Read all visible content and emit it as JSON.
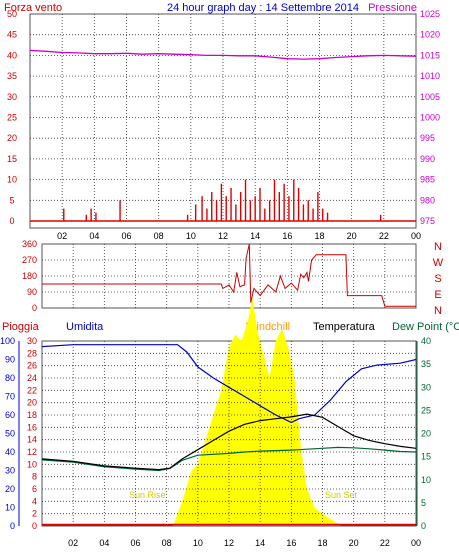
{
  "title": "24 hour graph day : 14 Settembre 2014",
  "colors": {
    "wind": "#dd0000",
    "direction": "#cc0000",
    "pressure": "#cc00cc",
    "humidity": "#0000cc",
    "temperature": "#000000",
    "dewpoint": "#006633",
    "rain": "#dd0000",
    "windchill": "#ff9900",
    "sun": "#ffff00",
    "grid": "#333333",
    "axisblue": "#0000cc",
    "axisred": "#cc0000",
    "axisgreen": "#006633"
  },
  "hour_ticks": [
    "02",
    "04",
    "06",
    "08",
    "10",
    "12",
    "14",
    "16",
    "18",
    "20",
    "22",
    "00"
  ],
  "chart_data": [
    {
      "type": "line",
      "name": "wind-pressure",
      "left_label": "Forza vento",
      "right_label": "Pressione",
      "left_ticks": [
        "50",
        "45",
        "40",
        "35",
        "30",
        "25",
        "20",
        "15",
        "10",
        "5",
        "0"
      ],
      "left_range": [
        0,
        50
      ],
      "right_ticks": [
        "1025",
        "1020",
        "1015",
        "1010",
        "1005",
        "1000",
        "995",
        "990",
        "985",
        "980",
        "975"
      ],
      "right_range": [
        975,
        1025
      ],
      "pressure": [
        [
          0,
          1016.2
        ],
        [
          1,
          1016.0
        ],
        [
          2,
          1015.7
        ],
        [
          3,
          1015.6
        ],
        [
          4,
          1015.4
        ],
        [
          5,
          1015.4
        ],
        [
          6,
          1015.5
        ],
        [
          7,
          1015.3
        ],
        [
          8,
          1015.4
        ],
        [
          9,
          1015.3
        ],
        [
          10,
          1015.2
        ],
        [
          11,
          1015.0
        ],
        [
          12,
          1015.0
        ],
        [
          13,
          1014.9
        ],
        [
          14,
          1014.9
        ],
        [
          15,
          1014.6
        ],
        [
          16,
          1014.2
        ],
        [
          17,
          1014.1
        ],
        [
          18,
          1014.2
        ],
        [
          19,
          1014.5
        ],
        [
          20,
          1014.7
        ],
        [
          21,
          1014.9
        ],
        [
          22,
          1015.0
        ],
        [
          23,
          1014.9
        ],
        [
          24,
          1014.8
        ]
      ],
      "wind_spikes": [
        [
          2.1,
          3
        ],
        [
          3.5,
          1.5
        ],
        [
          3.8,
          3
        ],
        [
          4.1,
          2
        ],
        [
          5.6,
          5
        ],
        [
          9.8,
          1.5
        ],
        [
          10.3,
          4
        ],
        [
          10.7,
          6
        ],
        [
          11.0,
          3
        ],
        [
          11.3,
          7
        ],
        [
          11.6,
          5
        ],
        [
          11.9,
          9
        ],
        [
          12.2,
          6
        ],
        [
          12.5,
          8
        ],
        [
          12.8,
          4
        ],
        [
          13.1,
          7
        ],
        [
          13.4,
          10
        ],
        [
          13.7,
          5
        ],
        [
          14.0,
          6
        ],
        [
          14.3,
          8
        ],
        [
          14.6,
          3
        ],
        [
          14.9,
          5
        ],
        [
          15.2,
          10
        ],
        [
          15.5,
          7
        ],
        [
          15.8,
          9
        ],
        [
          16.1,
          6
        ],
        [
          16.4,
          10
        ],
        [
          16.7,
          8
        ],
        [
          17.0,
          4
        ],
        [
          17.3,
          5
        ],
        [
          17.6,
          3
        ],
        [
          17.9,
          7
        ],
        [
          18.2,
          3
        ],
        [
          18.5,
          2
        ],
        [
          21.8,
          1.5
        ]
      ]
    },
    {
      "type": "line",
      "name": "wind-direction",
      "left_ticks": [
        "360",
        "270",
        "180",
        "90",
        "0"
      ],
      "left_range": [
        0,
        360
      ],
      "right_ticks": [
        "N",
        "W",
        "S",
        "E",
        "N"
      ],
      "direction": [
        [
          0,
          135
        ],
        [
          11.5,
          135
        ],
        [
          11.6,
          110
        ],
        [
          12.0,
          130
        ],
        [
          12.3,
          90
        ],
        [
          12.5,
          200
        ],
        [
          12.7,
          120
        ],
        [
          13.0,
          130
        ],
        [
          13.1,
          280
        ],
        [
          13.3,
          360
        ],
        [
          13.4,
          30
        ],
        [
          13.6,
          110
        ],
        [
          14.0,
          70
        ],
        [
          14.5,
          130
        ],
        [
          15.0,
          90
        ],
        [
          15.3,
          180
        ],
        [
          15.6,
          110
        ],
        [
          16.0,
          140
        ],
        [
          16.4,
          100
        ],
        [
          16.6,
          190
        ],
        [
          16.8,
          170
        ],
        [
          17.0,
          200
        ],
        [
          17.1,
          150
        ],
        [
          17.3,
          270
        ],
        [
          17.6,
          300
        ],
        [
          18.0,
          300
        ],
        [
          19.5,
          300
        ],
        [
          19.6,
          70
        ],
        [
          21.0,
          70
        ],
        [
          21.8,
          70
        ],
        [
          22.0,
          10
        ],
        [
          24,
          10
        ]
      ]
    },
    {
      "type": "line",
      "name": "rain-humidity-temperature",
      "labels": [
        "Pioggia",
        "Umidita",
        "Windchill",
        "Temperatura",
        "Dew Point (°C"
      ],
      "humidity_ticks": [
        "100",
        "90",
        "80",
        "70",
        "60",
        "50",
        "40",
        "30",
        "20",
        "10",
        "0"
      ],
      "humidity_range": [
        0,
        100
      ],
      "rain_ticks": [
        "30",
        "28",
        "26",
        "24",
        "22",
        "20",
        "18",
        "16",
        "14",
        "12",
        "10",
        "8",
        "6",
        "4",
        "2",
        "0"
      ],
      "rain_range": [
        0,
        30
      ],
      "temp_ticks": [
        "40",
        "35",
        "30",
        "25",
        "20",
        "15",
        "10",
        "5",
        "0"
      ],
      "temp_range": [
        0,
        40
      ],
      "sun_rise_label": "Sun Rise",
      "sun_set_label": "Sun Set",
      "humidity": [
        [
          0,
          97
        ],
        [
          2,
          98
        ],
        [
          4,
          98
        ],
        [
          6,
          98
        ],
        [
          8,
          98
        ],
        [
          8.7,
          98
        ],
        [
          9.3,
          94
        ],
        [
          10,
          86
        ],
        [
          11,
          80
        ],
        [
          12,
          75
        ],
        [
          13,
          70
        ],
        [
          14,
          65
        ],
        [
          15,
          60
        ],
        [
          16,
          56
        ],
        [
          16.5,
          58
        ],
        [
          17.5,
          60
        ],
        [
          18.5,
          68
        ],
        [
          19.5,
          78
        ],
        [
          20.5,
          85
        ],
        [
          21.5,
          87
        ],
        [
          23,
          88
        ],
        [
          24,
          90
        ]
      ],
      "temperature": [
        [
          0,
          14.5
        ],
        [
          2,
          14
        ],
        [
          4,
          13
        ],
        [
          6,
          12.5
        ],
        [
          7.5,
          12.2
        ],
        [
          8.2,
          12.5
        ],
        [
          9,
          14.5
        ],
        [
          10,
          16.5
        ],
        [
          11,
          18.5
        ],
        [
          12,
          20.5
        ],
        [
          13,
          22
        ],
        [
          14,
          22.8
        ],
        [
          15,
          23.2
        ],
        [
          16,
          23.6
        ],
        [
          17,
          24.2
        ],
        [
          18,
          23.5
        ],
        [
          19,
          21.5
        ],
        [
          20,
          19.5
        ],
        [
          21,
          18.5
        ],
        [
          22,
          17.8
        ],
        [
          23,
          17.2
        ],
        [
          24,
          16.8
        ]
      ],
      "dewpoint": [
        [
          0,
          14.3
        ],
        [
          2,
          13.8
        ],
        [
          4,
          12.8
        ],
        [
          6,
          12.3
        ],
        [
          7.5,
          12.0
        ],
        [
          8.2,
          12.4
        ],
        [
          9,
          14.2
        ],
        [
          10,
          15.3
        ],
        [
          11,
          15.5
        ],
        [
          12,
          15.7
        ],
        [
          13,
          16.0
        ],
        [
          14,
          16.2
        ],
        [
          15,
          16.3
        ],
        [
          16,
          16.4
        ],
        [
          17,
          16.6
        ],
        [
          18,
          16.8
        ],
        [
          19,
          17.0
        ],
        [
          20,
          16.9
        ],
        [
          21,
          16.7
        ],
        [
          22,
          16.4
        ],
        [
          23,
          16.1
        ],
        [
          24,
          16.0
        ]
      ],
      "sun_envelope": [
        [
          8.4,
          0
        ],
        [
          9.0,
          4
        ],
        [
          9.6,
          9
        ],
        [
          10.0,
          10
        ],
        [
          10.5,
          14
        ],
        [
          11.0,
          18
        ],
        [
          11.5,
          22
        ],
        [
          12.0,
          29
        ],
        [
          12.4,
          31
        ],
        [
          12.8,
          30
        ],
        [
          13.2,
          33
        ],
        [
          13.5,
          37
        ],
        [
          13.8,
          32
        ],
        [
          14.2,
          28
        ],
        [
          14.6,
          24
        ],
        [
          15.0,
          30
        ],
        [
          15.4,
          32
        ],
        [
          15.8,
          29
        ],
        [
          16.2,
          24
        ],
        [
          16.6,
          13
        ],
        [
          17.0,
          6
        ],
        [
          17.5,
          3
        ],
        [
          18.0,
          2
        ],
        [
          18.6,
          1
        ],
        [
          19.2,
          0
        ]
      ],
      "rain": [
        [
          0,
          0.2
        ],
        [
          24,
          0.2
        ]
      ]
    }
  ]
}
